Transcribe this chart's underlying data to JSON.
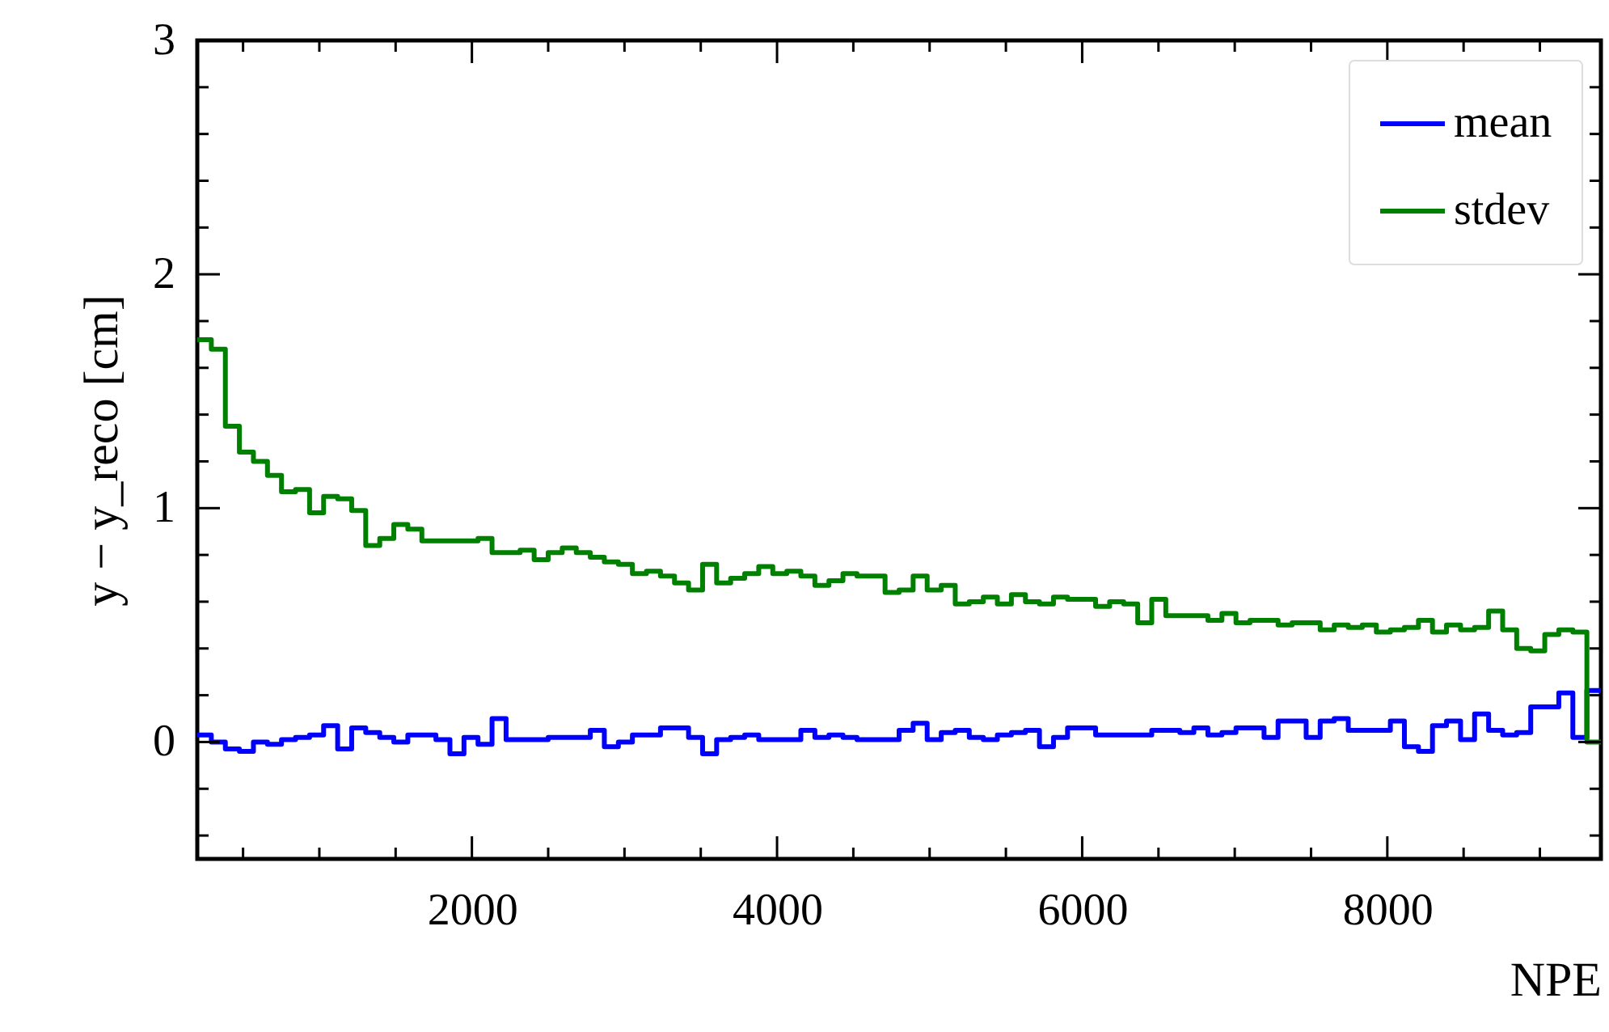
{
  "chart_data": {
    "type": "histogram",
    "xlabel": "NPE",
    "ylabel": "y − y_reco [cm]",
    "bins": [
      200,
      292,
      384,
      476,
      568,
      660,
      752,
      844,
      936,
      1028,
      1120,
      1212,
      1304,
      1396,
      1488,
      1580,
      1672,
      1764,
      1856,
      1948,
      2040,
      2132,
      2224,
      2316,
      2408,
      2500,
      2592,
      2684,
      2776,
      2868,
      2960,
      3052,
      3144,
      3236,
      3328,
      3420,
      3512,
      3604,
      3696,
      3788,
      3880,
      3972,
      4064,
      4156,
      4248,
      4340,
      4432,
      4524,
      4616,
      4708,
      4800,
      4892,
      4984,
      5076,
      5168,
      5260,
      5352,
      5444,
      5536,
      5628,
      5720,
      5812,
      5904,
      5996,
      6088,
      6180,
      6272,
      6364,
      6456,
      6548,
      6640,
      6732,
      6824,
      6916,
      7008,
      7100,
      7192,
      7284,
      7376,
      7468,
      7560,
      7652,
      7744,
      7836,
      7928,
      8020,
      8112,
      8204,
      8296,
      8388,
      8480,
      8572,
      8664,
      8756,
      8848,
      8940,
      9032,
      9124,
      9216,
      9308,
      9400
    ],
    "series": [
      {
        "name": "mean",
        "color": "#0000ff",
        "values": [
          0.03,
          0.0,
          -0.03,
          -0.04,
          0.0,
          -0.01,
          0.01,
          0.02,
          0.03,
          0.07,
          -0.03,
          0.06,
          0.04,
          0.02,
          0.0,
          0.03,
          0.03,
          0.01,
          -0.05,
          0.02,
          -0.01,
          0.1,
          0.01,
          0.01,
          0.01,
          0.02,
          0.02,
          0.02,
          0.05,
          -0.02,
          0.0,
          0.03,
          0.03,
          0.06,
          0.06,
          0.02,
          -0.05,
          0.01,
          0.02,
          0.03,
          0.01,
          0.01,
          0.01,
          0.05,
          0.02,
          0.03,
          0.02,
          0.01,
          0.01,
          0.01,
          0.05,
          0.08,
          0.01,
          0.04,
          0.05,
          0.02,
          0.01,
          0.03,
          0.04,
          0.05,
          -0.02,
          0.02,
          0.06,
          0.06,
          0.03,
          0.03,
          0.03,
          0.03,
          0.05,
          0.05,
          0.04,
          0.06,
          0.03,
          0.04,
          0.06,
          0.06,
          0.02,
          0.09,
          0.09,
          0.02,
          0.09,
          0.1,
          0.05,
          0.05,
          0.05,
          0.09,
          -0.02,
          -0.04,
          0.07,
          0.09,
          0.01,
          0.12,
          0.05,
          0.03,
          0.04,
          0.15,
          0.15,
          0.21,
          0.02,
          0.22
        ]
      },
      {
        "name": "stdev",
        "color": "#008000",
        "values": [
          1.72,
          1.68,
          1.35,
          1.24,
          1.2,
          1.14,
          1.07,
          1.08,
          0.98,
          1.05,
          1.04,
          0.99,
          0.84,
          0.87,
          0.93,
          0.91,
          0.86,
          0.86,
          0.86,
          0.86,
          0.87,
          0.81,
          0.81,
          0.82,
          0.78,
          0.81,
          0.83,
          0.81,
          0.79,
          0.77,
          0.76,
          0.72,
          0.73,
          0.71,
          0.68,
          0.65,
          0.76,
          0.68,
          0.7,
          0.72,
          0.75,
          0.72,
          0.73,
          0.71,
          0.67,
          0.69,
          0.72,
          0.71,
          0.71,
          0.64,
          0.65,
          0.71,
          0.65,
          0.67,
          0.59,
          0.6,
          0.62,
          0.59,
          0.63,
          0.6,
          0.59,
          0.62,
          0.61,
          0.61,
          0.58,
          0.6,
          0.59,
          0.51,
          0.61,
          0.54,
          0.54,
          0.54,
          0.52,
          0.55,
          0.51,
          0.52,
          0.52,
          0.5,
          0.51,
          0.51,
          0.48,
          0.5,
          0.49,
          0.5,
          0.47,
          0.48,
          0.49,
          0.52,
          0.47,
          0.5,
          0.48,
          0.49,
          0.56,
          0.48,
          0.4,
          0.39,
          0.46,
          0.48,
          0.47,
          0.0
        ]
      }
    ],
    "xlim": [
      200,
      9400
    ],
    "xticks": [
      {
        "value": 500,
        "label": null
      },
      {
        "value": 1000,
        "label": null
      },
      {
        "value": 1500,
        "label": null
      },
      2000,
      {
        "value": 2500,
        "label": null
      },
      {
        "value": 3000,
        "label": null
      },
      {
        "value": 3500,
        "label": null
      },
      4000,
      {
        "value": 4500,
        "label": null
      },
      {
        "value": 5000,
        "label": null
      },
      {
        "value": 5500,
        "label": null
      },
      6000,
      {
        "value": 6500,
        "label": null
      },
      {
        "value": 7000,
        "label": null
      },
      {
        "value": 7500,
        "label": null
      },
      8000,
      {
        "value": 8500,
        "label": null
      },
      {
        "value": 9000,
        "label": null
      }
    ],
    "ylim": [
      -0.5,
      3
    ],
    "yticks": [
      {
        "value": -0.4,
        "label": null
      },
      {
        "value": -0.2,
        "label": null
      },
      0,
      {
        "value": 0.2,
        "label": null
      },
      {
        "value": 0.4,
        "label": null
      },
      {
        "value": 0.6,
        "label": null
      },
      {
        "value": 0.8,
        "label": null
      },
      1,
      {
        "value": 1.2,
        "label": null
      },
      {
        "value": 1.4,
        "label": null
      },
      {
        "value": 1.6,
        "label": null
      },
      {
        "value": 1.8,
        "label": null
      },
      2,
      {
        "value": 2.2,
        "label": null
      },
      {
        "value": 2.4,
        "label": null
      },
      {
        "value": 2.6,
        "label": null
      },
      {
        "value": 2.8,
        "label": null
      },
      3
    ],
    "legend": "top right",
    "grid": false
  }
}
